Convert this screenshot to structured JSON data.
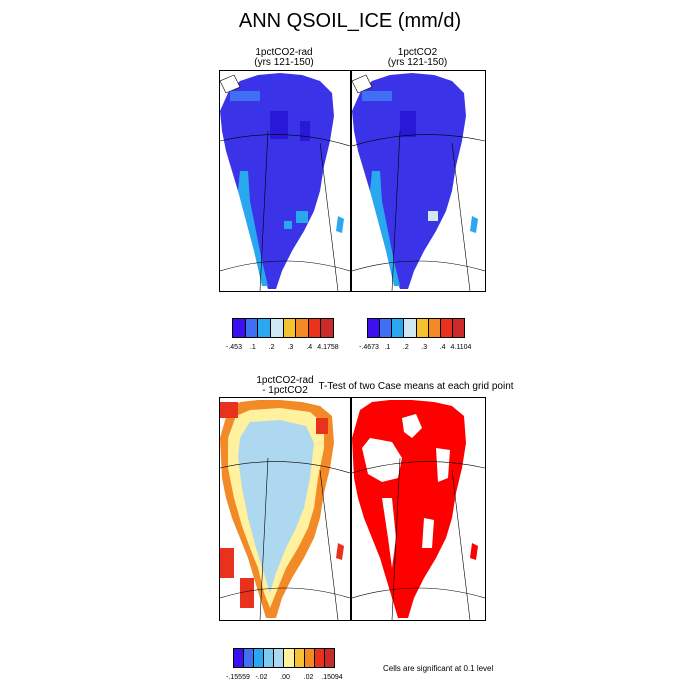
{
  "title": "ANN QSOIL_ICE (mm/d)",
  "panels": {
    "top_left": {
      "title_line1": "1pctCO2-rad",
      "title_line2": "(yrs 121-150)"
    },
    "top_right": {
      "title_line1": "1pctCO2",
      "title_line2": "(yrs 121-150)"
    },
    "bottom_left": {
      "title_line1": "1pctCO2-rad",
      "title_line2": "- 1pctCO2"
    },
    "bottom_right": {
      "title": "T-Test of two Case means at each grid point"
    }
  },
  "colorbars": {
    "top_left": {
      "colors": [
        "#3a10f0",
        "#3f6ff2",
        "#29a8f0",
        "#cfe8f2",
        "#f6c232",
        "#f28a28",
        "#e8321e",
        "#cc2a2a"
      ],
      "labels": [
        "-.453",
        ".1",
        ".2",
        ".3",
        ".4",
        "4.1758"
      ]
    },
    "top_right": {
      "colors": [
        "#3a10f0",
        "#3f6ff2",
        "#29a8f0",
        "#cfe8f2",
        "#f6c232",
        "#f28a28",
        "#e8321e",
        "#cc2a2a"
      ],
      "labels": [
        "-.4673",
        ".1",
        ".2",
        ".3",
        ".4",
        "4.1104"
      ]
    },
    "bottom": {
      "colors": [
        "#3a10f0",
        "#3f6ff2",
        "#29a8f0",
        "#7ecbf0",
        "#aed8f0",
        "#fff19e",
        "#f8c238",
        "#f08a24",
        "#e8321e",
        "#cc2a2a"
      ],
      "labels": [
        "-.15559",
        "-.02",
        ".00",
        ".02",
        ".15094"
      ]
    }
  },
  "significance_note": "Cells are significant at 0.1 level",
  "map_colors": {
    "ice_dark_blue": "#3a33e8",
    "ice_mid_blue": "#3f6ff2",
    "ice_light_blue": "#29a8f0",
    "diff_light_blue": "#aed8f0",
    "diff_yellow": "#fff19e",
    "diff_orange": "#f28a28",
    "diff_red": "#e8321e",
    "significant_red": "#ff0000"
  }
}
